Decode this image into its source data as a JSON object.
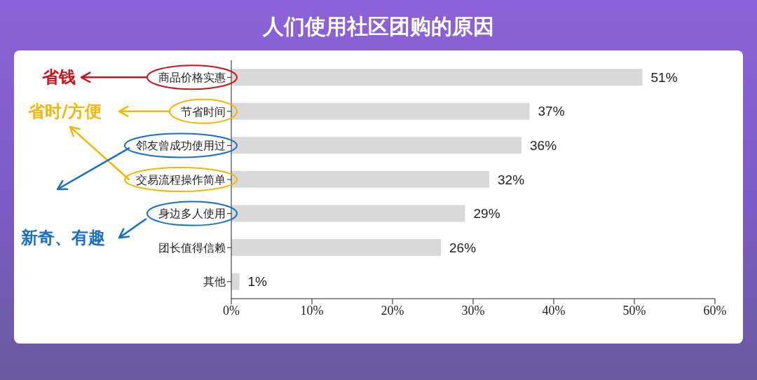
{
  "chart_data": {
    "type": "bar",
    "orientation": "horizontal",
    "title": "人们使用社区团购的原因",
    "categories": [
      "商品价格实惠",
      "节省时间",
      "邻友曾成功使用过",
      "交易流程操作简单",
      "身边多人使用",
      "团长值得信赖",
      "其他"
    ],
    "values": [
      51,
      37,
      36,
      32,
      29,
      26,
      1
    ],
    "value_labels": [
      "51%",
      "37%",
      "36%",
      "32%",
      "29%",
      "26%",
      "1%"
    ],
    "color": "#d9d9d9",
    "xlim": [
      0,
      60
    ],
    "xticks": [
      {
        "value": 0,
        "label": "0%"
      },
      {
        "value": 10,
        "label": "10%"
      },
      {
        "value": 20,
        "label": "20%"
      },
      {
        "value": 30,
        "label": "30%"
      },
      {
        "value": 40,
        "label": "40%"
      },
      {
        "value": 50,
        "label": "50%"
      },
      {
        "value": 60,
        "label": "60%"
      }
    ],
    "annotations": [
      "省钱",
      "省时/方便",
      "新奇、有趣"
    ],
    "grid": false,
    "legend": false
  }
}
